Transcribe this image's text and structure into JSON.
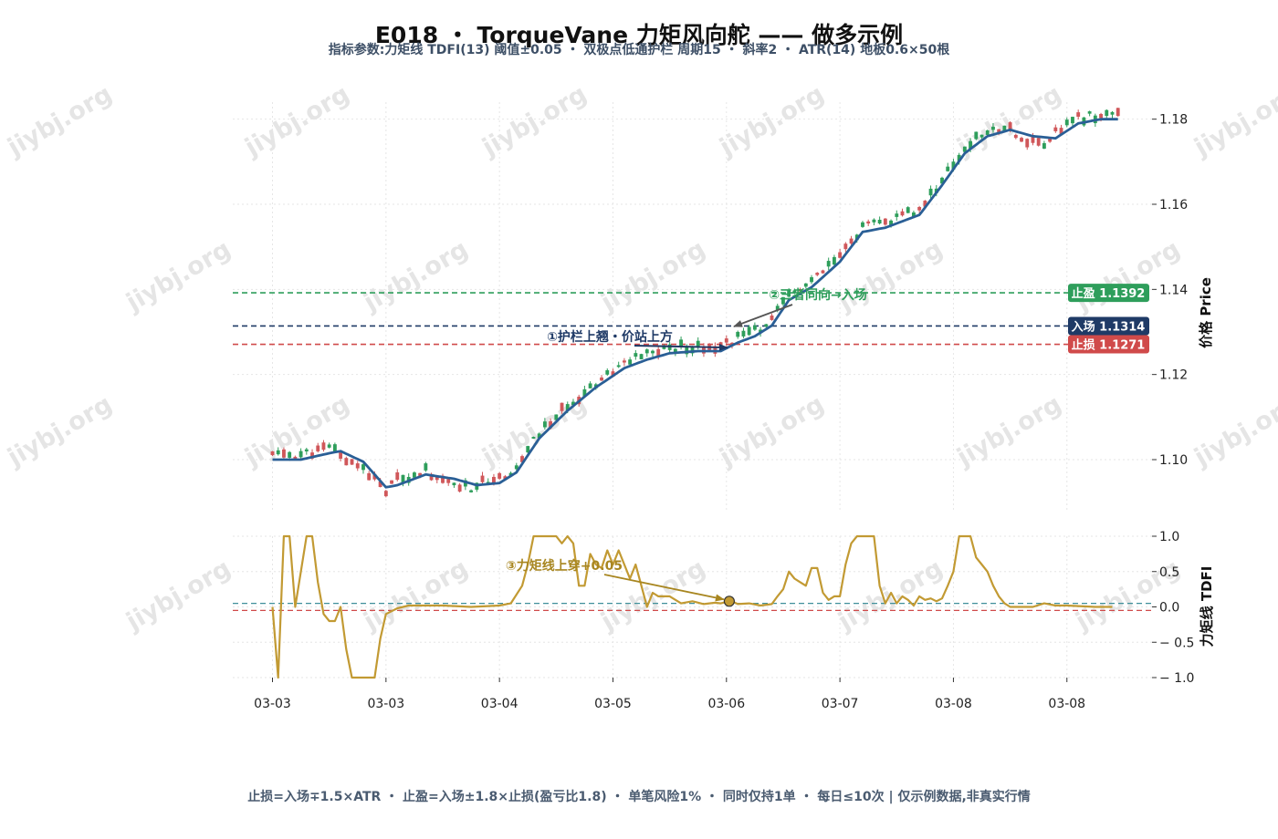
{
  "title": "E018 ・ TorqueVane 力矩风向舵 —— 做多示例",
  "subtitle": "指标参数:力矩线 TDFI(13) 阈值±0.05 ・ 双极点低通护栏 周期15 ・ 斜率2 ・ ATR(14) 地板0.6×50根",
  "footer": "止损=入场∓1.5×ATR ・ 止盈=入场±1.8×止损(盈亏比1.8) ・ 单笔风险1% ・ 同时仅持1单 ・ 每日≤10次 | 仅示例数据,非真实行情",
  "watermark": "jiybj.org",
  "colors": {
    "up": "#2e9e5b",
    "down": "#d0575a",
    "guard": "#2a5f96",
    "tdfi": "#c29a33",
    "take_profit": "#2e9e5b",
    "entry": "#1f3a66",
    "stop_loss": "#d04a4a",
    "annotation_green": "#2e9e5b",
    "annotation_navy": "#1f3a66",
    "annotation_gold": "#a88620"
  },
  "chart_data": {
    "type": "line",
    "price_panel": {
      "kind": "candlestick",
      "ylabel": "价格 Price",
      "ylim": [
        1.088,
        1.184
      ],
      "yticks": [
        1.1,
        1.12,
        1.14,
        1.16,
        1.18
      ],
      "ytick_labels": [
        "1.10",
        "1.12",
        "1.14",
        "1.16",
        "1.18"
      ],
      "xlim": [
        -7,
        155
      ],
      "x_tick_positions": [
        0,
        20,
        40,
        60,
        80,
        100,
        120,
        140
      ],
      "x_tick_labels": [
        "03-03",
        "03-03",
        "03-04",
        "03-05",
        "03-06",
        "03-07",
        "03-08",
        "03-08"
      ],
      "guard_name": "双极点低通护栏",
      "guard": [
        [
          0,
          1.1
        ],
        [
          5,
          1.1
        ],
        [
          10,
          1.1015
        ],
        [
          12,
          1.102
        ],
        [
          16,
          1.0995
        ],
        [
          20,
          1.0935
        ],
        [
          22,
          1.094
        ],
        [
          27,
          1.0965
        ],
        [
          32,
          1.0955
        ],
        [
          36,
          1.094
        ],
        [
          40,
          1.0945
        ],
        [
          43,
          1.097
        ],
        [
          47,
          1.105
        ],
        [
          52,
          1.1115
        ],
        [
          57,
          1.117
        ],
        [
          62,
          1.1215
        ],
        [
          66,
          1.1235
        ],
        [
          70,
          1.125
        ],
        [
          75,
          1.1255
        ],
        [
          79,
          1.1255
        ],
        [
          82,
          1.1275
        ],
        [
          85,
          1.129
        ],
        [
          88,
          1.1315
        ],
        [
          91,
          1.1375
        ],
        [
          95,
          1.1405
        ],
        [
          100,
          1.1465
        ],
        [
          104,
          1.1535
        ],
        [
          108,
          1.1545
        ],
        [
          111,
          1.156
        ],
        [
          114,
          1.1575
        ],
        [
          118,
          1.1645
        ],
        [
          122,
          1.172
        ],
        [
          126,
          1.176
        ],
        [
          130,
          1.1775
        ],
        [
          134,
          1.176
        ],
        [
          138,
          1.1755
        ],
        [
          142,
          1.179
        ],
        [
          146,
          1.18
        ],
        [
          149,
          1.18
        ]
      ],
      "lines": [
        {
          "label": "止盈 1.1392",
          "value": 1.1392,
          "color_key": "take_profit"
        },
        {
          "label": "入场 1.1314",
          "value": 1.1314,
          "color_key": "entry"
        },
        {
          "label": "止损 1.1271",
          "value": 1.1271,
          "color_key": "stop_loss"
        }
      ],
      "annotations": [
        {
          "text": "①护栏上翘・价站上方",
          "point": [
            80.5,
            1.1259
          ],
          "color_key": "annotation_navy"
        },
        {
          "text": "②三者同向→入场",
          "point": [
            81,
            1.1315
          ],
          "color_key": "annotation_green"
        }
      ]
    },
    "indicator_panel": {
      "name": "力矩线 TDFI",
      "ylabel": "力矩线 TDFI",
      "ylim": [
        -1.0,
        1.0
      ],
      "yticks": [
        -1.0,
        -0.5,
        0.0,
        0.5,
        1.0
      ],
      "ytick_labels": [
        "− 1.0",
        "− 0.5",
        "0.0",
        "0.5",
        "1.0"
      ],
      "threshold_upper": 0.05,
      "threshold_lower": -0.05,
      "values": [
        [
          0,
          0.0
        ],
        [
          1,
          -1.0
        ],
        [
          2,
          1.0
        ],
        [
          3,
          1.0
        ],
        [
          4,
          0.0
        ],
        [
          5,
          0.5
        ],
        [
          6,
          1.0
        ],
        [
          7,
          1.0
        ],
        [
          8,
          0.35
        ],
        [
          9,
          -0.1
        ],
        [
          10,
          -0.2
        ],
        [
          11,
          -0.2
        ],
        [
          12,
          0.0
        ],
        [
          13,
          -0.6
        ],
        [
          14,
          -1.0
        ],
        [
          15,
          -1.0
        ],
        [
          16,
          -1.0
        ],
        [
          17,
          -1.0
        ],
        [
          18,
          -1.0
        ],
        [
          19,
          -0.45
        ],
        [
          20,
          -0.1
        ],
        [
          22,
          -0.02
        ],
        [
          24,
          0.02
        ],
        [
          30,
          0.02
        ],
        [
          35,
          0.0
        ],
        [
          40,
          0.02
        ],
        [
          42,
          0.05
        ],
        [
          44,
          0.3
        ],
        [
          45,
          0.6
        ],
        [
          46,
          1.0
        ],
        [
          49,
          1.0
        ],
        [
          50,
          1.0
        ],
        [
          51,
          0.9
        ],
        [
          52,
          1.0
        ],
        [
          53,
          0.9
        ],
        [
          54,
          0.3
        ],
        [
          55,
          0.3
        ],
        [
          56,
          0.75
        ],
        [
          57,
          0.6
        ],
        [
          58,
          0.55
        ],
        [
          59,
          0.8
        ],
        [
          60,
          0.6
        ],
        [
          61,
          0.8
        ],
        [
          62,
          0.6
        ],
        [
          63,
          0.4
        ],
        [
          64,
          0.6
        ],
        [
          65,
          0.3
        ],
        [
          66,
          0.0
        ],
        [
          67,
          0.2
        ],
        [
          68,
          0.15
        ],
        [
          70,
          0.15
        ],
        [
          72,
          0.05
        ],
        [
          74,
          0.08
        ],
        [
          76,
          0.04
        ],
        [
          78,
          0.06
        ],
        [
          79,
          0.05
        ],
        [
          80,
          0.07
        ],
        [
          81,
          0.08
        ],
        [
          82,
          0.04
        ],
        [
          84,
          0.05
        ],
        [
          86,
          0.02
        ],
        [
          88,
          0.04
        ],
        [
          89,
          0.15
        ],
        [
          90,
          0.25
        ],
        [
          91,
          0.5
        ],
        [
          92,
          0.4
        ],
        [
          93,
          0.35
        ],
        [
          94,
          0.3
        ],
        [
          95,
          0.55
        ],
        [
          96,
          0.55
        ],
        [
          97,
          0.2
        ],
        [
          98,
          0.1
        ],
        [
          99,
          0.15
        ],
        [
          100,
          0.15
        ],
        [
          101,
          0.6
        ],
        [
          102,
          0.9
        ],
        [
          103,
          1.0
        ],
        [
          106,
          1.0
        ],
        [
          107,
          0.3
        ],
        [
          108,
          0.05
        ],
        [
          109,
          0.2
        ],
        [
          110,
          0.05
        ],
        [
          111,
          0.15
        ],
        [
          112,
          0.1
        ],
        [
          113,
          0.02
        ],
        [
          114,
          0.15
        ],
        [
          115,
          0.1
        ],
        [
          116,
          0.12
        ],
        [
          117,
          0.08
        ],
        [
          118,
          0.12
        ],
        [
          119,
          0.3
        ],
        [
          120,
          0.5
        ],
        [
          121,
          1.0
        ],
        [
          123,
          1.0
        ],
        [
          124,
          0.7
        ],
        [
          125,
          0.6
        ],
        [
          126,
          0.5
        ],
        [
          127,
          0.3
        ],
        [
          128,
          0.15
        ],
        [
          129,
          0.05
        ],
        [
          130,
          0.0
        ],
        [
          134,
          0.0
        ],
        [
          136,
          0.05
        ],
        [
          138,
          0.02
        ],
        [
          140,
          0.02
        ],
        [
          145,
          0.0
        ],
        [
          148,
          0.0
        ]
      ],
      "marker": [
        80.5,
        0.08
      ],
      "annotation": {
        "text": "③力矩线上穿+0.05",
        "point": [
          80.5,
          0.08
        ],
        "color_key": "annotation_gold"
      }
    }
  }
}
